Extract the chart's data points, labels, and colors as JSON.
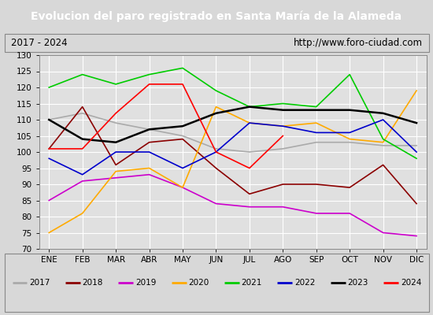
{
  "title": "Evolucion del paro registrado en Santa María de la Alameda",
  "subtitle_left": "2017 - 2024",
  "subtitle_right": "http://www.foro-ciudad.com",
  "months": [
    "ENE",
    "FEB",
    "MAR",
    "ABR",
    "MAY",
    "JUN",
    "JUL",
    "AGO",
    "SEP",
    "OCT",
    "NOV",
    "DIC"
  ],
  "ylim": [
    70,
    130
  ],
  "yticks": [
    70,
    75,
    80,
    85,
    90,
    95,
    100,
    105,
    110,
    115,
    120,
    125,
    130
  ],
  "series": {
    "2017": {
      "values": [
        110,
        112,
        109,
        107,
        105,
        101,
        100,
        101,
        103,
        103,
        102,
        102
      ],
      "color": "#aaaaaa",
      "linewidth": 1.2
    },
    "2018": {
      "values": [
        101,
        114,
        96,
        103,
        104,
        95,
        87,
        90,
        90,
        89,
        96,
        84
      ],
      "color": "#8b0000",
      "linewidth": 1.2
    },
    "2019": {
      "values": [
        85,
        91,
        92,
        93,
        89,
        84,
        83,
        83,
        81,
        81,
        75,
        74
      ],
      "color": "#cc00cc",
      "linewidth": 1.2
    },
    "2020": {
      "values": [
        75,
        81,
        94,
        95,
        89,
        114,
        109,
        108,
        109,
        104,
        103,
        119
      ],
      "color": "#ffaa00",
      "linewidth": 1.2
    },
    "2021": {
      "values": [
        120,
        124,
        121,
        124,
        126,
        119,
        114,
        115,
        114,
        124,
        104,
        98
      ],
      "color": "#00cc00",
      "linewidth": 1.2
    },
    "2022": {
      "values": [
        98,
        93,
        100,
        100,
        95,
        100,
        109,
        108,
        106,
        106,
        110,
        100
      ],
      "color": "#0000cc",
      "linewidth": 1.2
    },
    "2023": {
      "values": [
        110,
        104,
        103,
        107,
        108,
        112,
        114,
        113,
        113,
        113,
        112,
        109
      ],
      "color": "#000000",
      "linewidth": 1.8
    },
    "2024": {
      "values": [
        101,
        101,
        112,
        121,
        121,
        100,
        95,
        105,
        null,
        null,
        null,
        null
      ],
      "color": "#ff0000",
      "linewidth": 1.2
    }
  },
  "background_color": "#d8d8d8",
  "plot_bg_color": "#e0e0e0",
  "title_bg_color": "#4472c4",
  "title_color": "#ffffff",
  "grid_color": "#ffffff",
  "subtitle_border_color": "#888888"
}
